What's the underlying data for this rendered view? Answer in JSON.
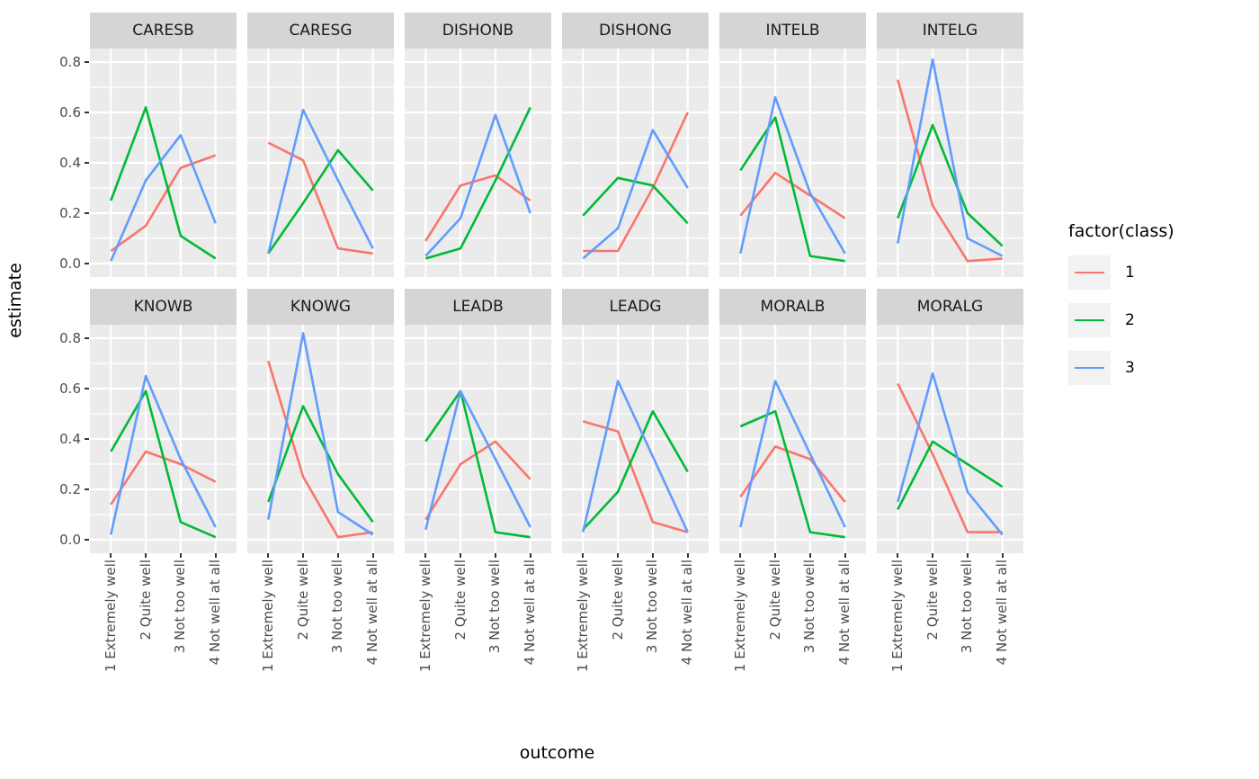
{
  "chart_data": {
    "type": "line",
    "title": "",
    "xlabel": "outcome",
    "ylabel": "estimate",
    "categories": [
      "1 Extremely well",
      "2 Quite well",
      "3 Not too well",
      "4 Not well at all"
    ],
    "y_ticks": [
      0.0,
      0.2,
      0.4,
      0.6,
      0.8
    ],
    "y_minor_ticks": [
      0.1,
      0.3,
      0.5,
      0.7
    ],
    "ylim": [
      -0.054,
      0.854
    ],
    "grid": true,
    "facet_layout": {
      "rows": 2,
      "cols": 6
    },
    "legend": {
      "title": "factor(class)",
      "position": "right",
      "entries": [
        {
          "label": "1",
          "color": "#F8766D"
        },
        {
          "label": "2",
          "color": "#00BA38"
        },
        {
          "label": "3",
          "color": "#619CFF"
        }
      ]
    },
    "facets": [
      {
        "title": "CARESB",
        "series": [
          {
            "name": "1",
            "values": [
              0.05,
              0.15,
              0.38,
              0.43
            ]
          },
          {
            "name": "2",
            "values": [
              0.25,
              0.62,
              0.11,
              0.02
            ]
          },
          {
            "name": "3",
            "values": [
              0.01,
              0.33,
              0.51,
              0.16
            ]
          }
        ]
      },
      {
        "title": "CARESG",
        "series": [
          {
            "name": "1",
            "values": [
              0.48,
              0.41,
              0.06,
              0.04
            ]
          },
          {
            "name": "2",
            "values": [
              0.04,
              0.24,
              0.45,
              0.29
            ]
          },
          {
            "name": "3",
            "values": [
              0.04,
              0.61,
              0.33,
              0.06
            ]
          }
        ]
      },
      {
        "title": "DISHONB",
        "series": [
          {
            "name": "1",
            "values": [
              0.09,
              0.31,
              0.35,
              0.25
            ]
          },
          {
            "name": "2",
            "values": [
              0.02,
              0.06,
              0.33,
              0.62
            ]
          },
          {
            "name": "3",
            "values": [
              0.03,
              0.18,
              0.59,
              0.2
            ]
          }
        ]
      },
      {
        "title": "DISHONG",
        "series": [
          {
            "name": "1",
            "values": [
              0.05,
              0.05,
              0.3,
              0.6
            ]
          },
          {
            "name": "2",
            "values": [
              0.19,
              0.34,
              0.31,
              0.16
            ]
          },
          {
            "name": "3",
            "values": [
              0.02,
              0.14,
              0.53,
              0.3
            ]
          }
        ]
      },
      {
        "title": "INTELB",
        "series": [
          {
            "name": "1",
            "values": [
              0.19,
              0.36,
              0.27,
              0.18
            ]
          },
          {
            "name": "2",
            "values": [
              0.37,
              0.58,
              0.03,
              0.01
            ]
          },
          {
            "name": "3",
            "values": [
              0.04,
              0.66,
              0.28,
              0.04
            ]
          }
        ]
      },
      {
        "title": "INTELG",
        "series": [
          {
            "name": "1",
            "values": [
              0.73,
              0.23,
              0.01,
              0.02
            ]
          },
          {
            "name": "2",
            "values": [
              0.18,
              0.55,
              0.2,
              0.07
            ]
          },
          {
            "name": "3",
            "values": [
              0.08,
              0.81,
              0.1,
              0.03
            ]
          }
        ]
      },
      {
        "title": "KNOWB",
        "series": [
          {
            "name": "1",
            "values": [
              0.14,
              0.35,
              0.3,
              0.23
            ]
          },
          {
            "name": "2",
            "values": [
              0.35,
              0.59,
              0.07,
              0.01
            ]
          },
          {
            "name": "3",
            "values": [
              0.02,
              0.65,
              0.32,
              0.05
            ]
          }
        ]
      },
      {
        "title": "KNOWG",
        "series": [
          {
            "name": "1",
            "values": [
              0.71,
              0.25,
              0.01,
              0.03
            ]
          },
          {
            "name": "2",
            "values": [
              0.15,
              0.53,
              0.26,
              0.07
            ]
          },
          {
            "name": "3",
            "values": [
              0.08,
              0.82,
              0.11,
              0.02
            ]
          }
        ]
      },
      {
        "title": "LEADB",
        "series": [
          {
            "name": "1",
            "values": [
              0.08,
              0.3,
              0.39,
              0.24
            ]
          },
          {
            "name": "2",
            "values": [
              0.39,
              0.59,
              0.03,
              0.01
            ]
          },
          {
            "name": "3",
            "values": [
              0.04,
              0.59,
              0.32,
              0.05
            ]
          }
        ]
      },
      {
        "title": "LEADG",
        "series": [
          {
            "name": "1",
            "values": [
              0.47,
              0.43,
              0.07,
              0.03
            ]
          },
          {
            "name": "2",
            "values": [
              0.04,
              0.19,
              0.51,
              0.27
            ]
          },
          {
            "name": "3",
            "values": [
              0.03,
              0.63,
              0.33,
              0.03
            ]
          }
        ]
      },
      {
        "title": "MORALB",
        "series": [
          {
            "name": "1",
            "values": [
              0.17,
              0.37,
              0.32,
              0.15
            ]
          },
          {
            "name": "2",
            "values": [
              0.45,
              0.51,
              0.03,
              0.01
            ]
          },
          {
            "name": "3",
            "values": [
              0.05,
              0.63,
              0.34,
              0.05
            ]
          }
        ]
      },
      {
        "title": "MORALG",
        "series": [
          {
            "name": "1",
            "values": [
              0.62,
              0.34,
              0.03,
              0.03
            ]
          },
          {
            "name": "2",
            "values": [
              0.12,
              0.39,
              0.3,
              0.21
            ]
          },
          {
            "name": "3",
            "values": [
              0.15,
              0.66,
              0.19,
              0.02
            ]
          }
        ]
      }
    ]
  },
  "theme": {
    "panel_bg": "#EBEBEB",
    "strip_bg": "#D5D5D5",
    "grid_color": "#FFFFFF",
    "tick_text_color": "#4D4D4D",
    "axis_title_color": "#000000",
    "legend_key_bg": "#F2F2F2"
  }
}
